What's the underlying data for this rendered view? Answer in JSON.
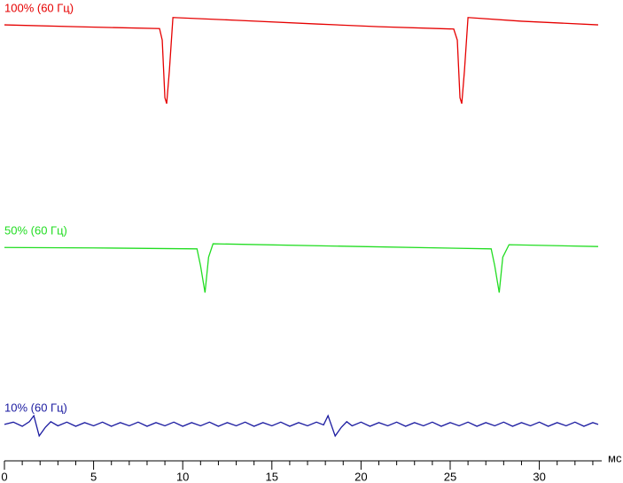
{
  "chart_data": {
    "type": "line",
    "x_label": "мс",
    "xlim": [
      0,
      33.5
    ],
    "xticks": [
      0,
      5,
      10,
      15,
      20,
      25,
      30
    ],
    "xminorticks": [
      1,
      2,
      3,
      4,
      6,
      7,
      8,
      9,
      11,
      12,
      13,
      14,
      16,
      17,
      18,
      19,
      21,
      22,
      23,
      24,
      26,
      27,
      28,
      29,
      31,
      32,
      33
    ],
    "ylim": [
      0,
      100
    ],
    "series": [
      {
        "name": "100% (60 Гц)",
        "color": "#e60000",
        "x": [
          0,
          4,
          8.7,
          8.85,
          9.0,
          9.1,
          9.25,
          9.45,
          13,
          17.5,
          21,
          25.2,
          25.4,
          25.55,
          25.65,
          25.8,
          26.0,
          29,
          33.3
        ],
        "values": [
          94.6,
          94.2,
          93.8,
          91.3,
          78.8,
          77.5,
          84.6,
          96.2,
          95.6,
          94.8,
          94.2,
          93.7,
          91.3,
          78.8,
          77.5,
          84.6,
          96.2,
          95.4,
          94.6
        ]
      },
      {
        "name": "50% (60 Гц)",
        "color": "#22dd22",
        "x": [
          0,
          5,
          10.8,
          11.0,
          11.25,
          11.45,
          11.7,
          20,
          27.3,
          27.5,
          27.75,
          27.95,
          28.3,
          33.3
        ],
        "values": [
          46.3,
          46.2,
          46.0,
          42.3,
          36.5,
          44.2,
          47.1,
          46.5,
          46.0,
          42.3,
          36.5,
          44.2,
          46.9,
          46.5
        ]
      },
      {
        "name": "10% (60 Гц)",
        "color": "#1a1aa0",
        "x": [
          0,
          0.5,
          1.0,
          1.4,
          1.65,
          1.95,
          2.3,
          2.6,
          3.0,
          3.5,
          4.0,
          4.5,
          5.0,
          5.5,
          6.0,
          6.5,
          7.0,
          7.5,
          8.0,
          8.5,
          9.0,
          9.5,
          10.0,
          10.5,
          11.0,
          11.5,
          12.0,
          12.5,
          13.0,
          13.5,
          14.0,
          14.5,
          15.0,
          15.5,
          16.0,
          16.5,
          17.0,
          17.5,
          17.9,
          18.15,
          18.55,
          18.9,
          19.2,
          19.5,
          20.0,
          20.5,
          21.0,
          21.5,
          22.0,
          22.5,
          23.0,
          23.5,
          24.0,
          24.5,
          25.0,
          25.5,
          26.0,
          26.5,
          27.0,
          27.5,
          28.0,
          28.5,
          29.0,
          29.5,
          30.0,
          30.5,
          31.0,
          31.5,
          32.0,
          32.5,
          33.0,
          33.3
        ],
        "values": [
          7.9,
          8.4,
          7.5,
          8.5,
          9.8,
          5.4,
          7.3,
          8.5,
          7.6,
          8.4,
          7.5,
          8.3,
          7.6,
          8.4,
          7.5,
          8.3,
          7.6,
          8.4,
          7.5,
          8.3,
          7.6,
          8.4,
          7.5,
          8.3,
          7.6,
          8.4,
          7.5,
          8.3,
          7.6,
          8.4,
          7.5,
          8.3,
          7.6,
          8.4,
          7.5,
          8.3,
          7.6,
          8.4,
          7.8,
          9.8,
          5.4,
          7.3,
          8.5,
          7.6,
          8.4,
          7.5,
          8.3,
          7.6,
          8.4,
          7.5,
          8.3,
          7.6,
          8.4,
          7.5,
          8.3,
          7.6,
          8.4,
          7.5,
          8.3,
          7.6,
          8.4,
          7.5,
          8.3,
          7.6,
          8.4,
          7.5,
          8.3,
          7.6,
          8.4,
          7.5,
          8.3,
          7.9
        ]
      }
    ]
  }
}
